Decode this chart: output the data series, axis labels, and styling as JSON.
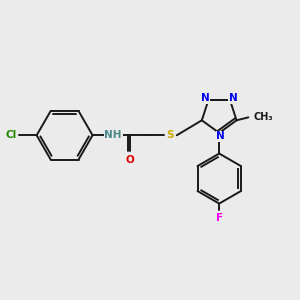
{
  "bg_color": "#ebebeb",
  "bond_color": "#1a1a1a",
  "atom_colors": {
    "N": "#0000ee",
    "O": "#dd0000",
    "S": "#ccaa00",
    "Cl": "#228800",
    "F": "#ee00ee",
    "C": "#1a1a1a",
    "H": "#4a8888"
  },
  "font_size": 7.5,
  "line_width": 1.4,
  "scale": 1.0
}
